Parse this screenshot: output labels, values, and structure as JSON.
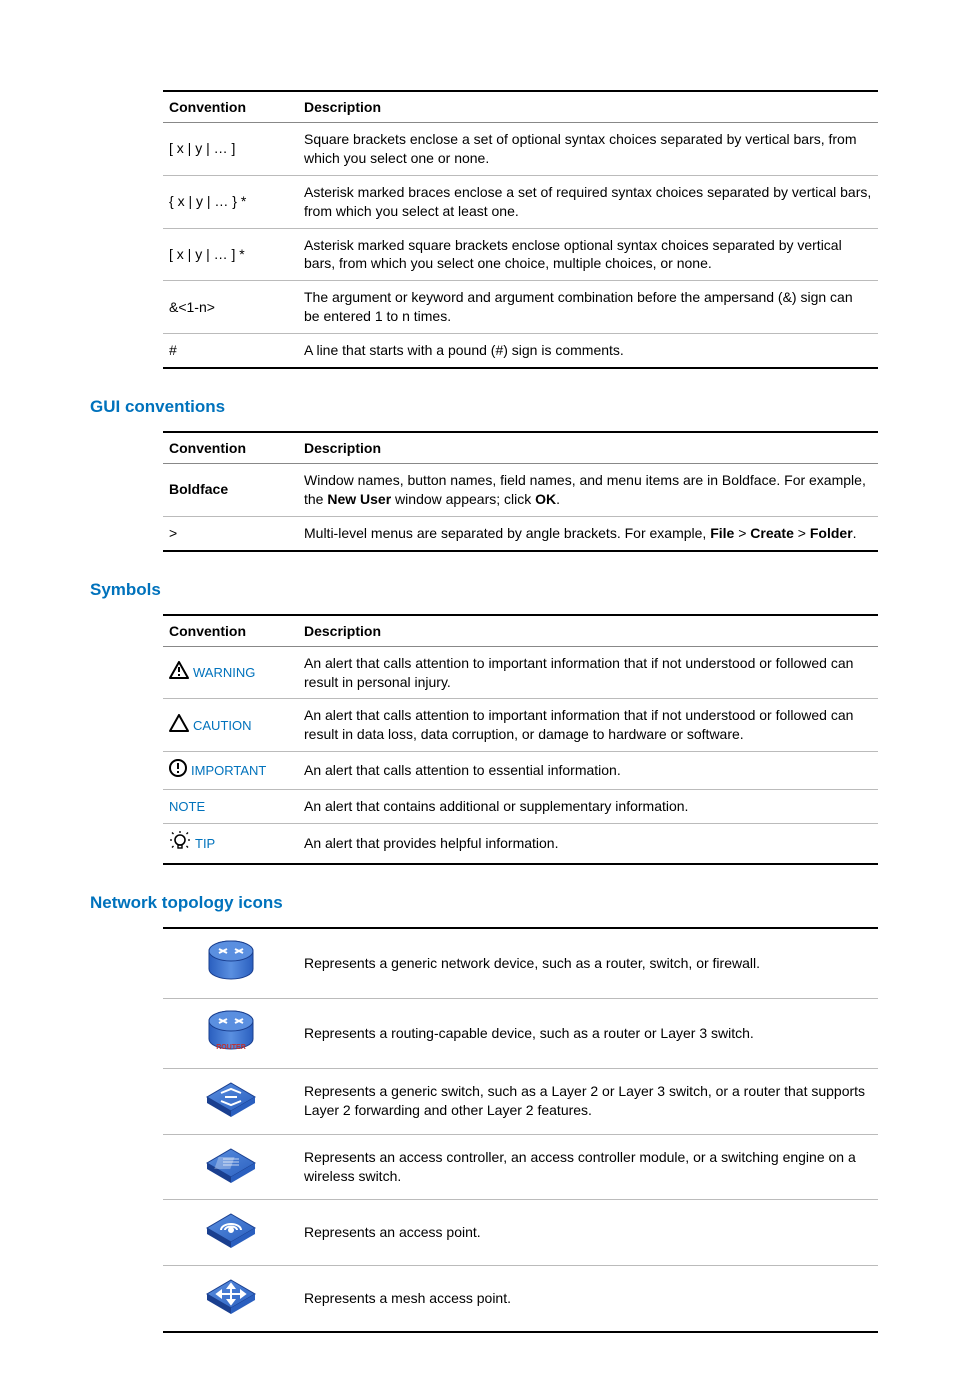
{
  "colors": {
    "heading": "#0072bc",
    "text": "#000000",
    "table_border_heavy": "#000000",
    "table_border_light": "#bbbbbb",
    "icon_blue": "#2a5fbf",
    "icon_blue_light": "#5a8fe0",
    "icon_blue_dark": "#1a3f8f",
    "router_label": "#c03030",
    "warning_fill": "#000000",
    "tip_fill": "#000000"
  },
  "col_headers": {
    "conv": "Convention",
    "desc": "Description"
  },
  "syntax_table": {
    "rows": [
      {
        "conv": "[ x | y | … ]",
        "desc": "Square brackets enclose a set of optional syntax choices separated by vertical bars, from which you select one or none."
      },
      {
        "conv": "{ x | y | … } *",
        "desc": "Asterisk marked braces enclose a set of required syntax choices separated by vertical bars, from which you select at least one."
      },
      {
        "conv": "[ x | y | … ] *",
        "desc": "Asterisk marked square brackets enclose optional syntax choices separated by vertical bars, from which you select one choice, multiple choices, or none."
      },
      {
        "conv": "&<1-n>",
        "desc": "The argument or keyword and argument combination before the ampersand (&) sign can be entered 1 to n times."
      },
      {
        "conv": "#",
        "desc": "A line that starts with a pound (#) sign is comments."
      }
    ]
  },
  "gui_heading": "GUI conventions",
  "gui_table": {
    "rows": [
      {
        "conv": "Boldface",
        "conv_bold": true,
        "desc_parts": [
          "Window names, button names, field names, and menu items are in Boldface. For example, the ",
          "New User",
          " window appears; click ",
          "OK",
          "."
        ]
      },
      {
        "conv": ">",
        "desc_parts": [
          "Multi-level menus are separated by angle brackets. For example, ",
          "File",
          " > ",
          "Create",
          " > ",
          "Folder",
          "."
        ]
      }
    ]
  },
  "symbols_heading": "Symbols",
  "symbols_table": {
    "rows": [
      {
        "icon": "warning-triangle-bang",
        "label": "WARNING",
        "desc": "An alert that calls attention to important information that if not understood or followed can result in personal injury."
      },
      {
        "icon": "warning-triangle",
        "label": "CAUTION",
        "desc": "An alert that calls attention to important information that if not understood or followed can result in data loss, data corruption, or damage to hardware or software."
      },
      {
        "icon": "circle-bang",
        "label": "IMPORTANT",
        "desc": "An alert that calls attention to essential information."
      },
      {
        "icon": "",
        "label": "NOTE",
        "desc": "An alert that contains additional or supplementary information."
      },
      {
        "icon": "lightbulb",
        "label": "TIP",
        "desc": "An alert that provides helpful information."
      }
    ]
  },
  "topology_heading": "Network topology icons",
  "topology_table": {
    "rows": [
      {
        "icon": "generic-device",
        "desc": "Represents a generic network device, such as a router, switch, or firewall."
      },
      {
        "icon": "router",
        "desc": "Represents a routing-capable device, such as a router or Layer 3 switch."
      },
      {
        "icon": "switch",
        "desc": "Represents a generic switch, such as a Layer 2 or Layer 3 switch, or a router that supports Layer 2 forwarding and other Layer 2 features."
      },
      {
        "icon": "access-controller",
        "desc": "Represents an access controller, an access controller module, or a switching engine on a wireless switch."
      },
      {
        "icon": "access-point",
        "desc": "Represents an access point."
      },
      {
        "icon": "mesh-ap",
        "desc": "Represents a mesh access point."
      }
    ]
  }
}
